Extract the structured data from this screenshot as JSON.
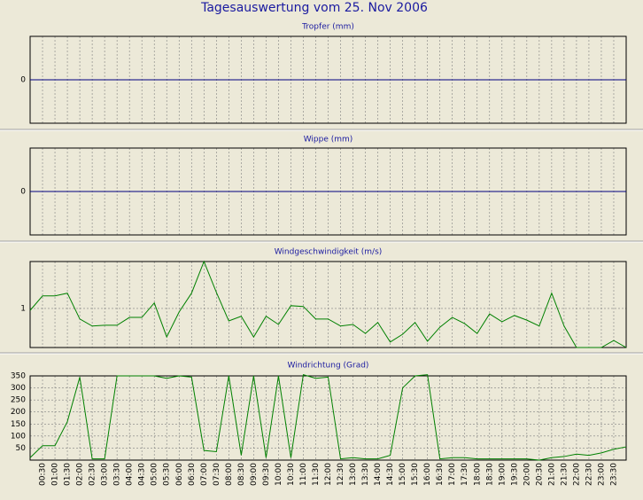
{
  "title": "Tagesauswertung vom 25. Nov 2006",
  "chart_data": [
    {
      "type": "line",
      "title": "Tropfer (mm)",
      "color": "#000080",
      "ylim": [
        -1,
        1
      ],
      "yticks": [
        0
      ],
      "grid": true,
      "values": [
        0,
        0,
        0,
        0,
        0,
        0,
        0,
        0,
        0,
        0,
        0,
        0,
        0,
        0,
        0,
        0,
        0,
        0,
        0,
        0,
        0,
        0,
        0,
        0,
        0,
        0,
        0,
        0,
        0,
        0,
        0,
        0,
        0,
        0,
        0,
        0,
        0,
        0,
        0,
        0,
        0,
        0,
        0,
        0,
        0,
        0,
        0,
        0,
        0
      ]
    },
    {
      "type": "line",
      "title": "Wippe (mm)",
      "color": "#000080",
      "ylim": [
        -1,
        1
      ],
      "yticks": [
        0
      ],
      "grid": true,
      "values": [
        0,
        0,
        0,
        0,
        0,
        0,
        0,
        0,
        0,
        0,
        0,
        0,
        0,
        0,
        0,
        0,
        0,
        0,
        0,
        0,
        0,
        0,
        0,
        0,
        0,
        0,
        0,
        0,
        0,
        0,
        0,
        0,
        0,
        0,
        0,
        0,
        0,
        0,
        0,
        0,
        0,
        0,
        0,
        0,
        0,
        0,
        0,
        0,
        0
      ]
    },
    {
      "type": "line",
      "title": "Windgeschwindigkeit (m/s)",
      "color": "#008000",
      "ylim": [
        0,
        2.2
      ],
      "yticks": [
        1
      ],
      "grid": true,
      "values": [
        0.95,
        1.32,
        1.32,
        1.39,
        0.73,
        0.55,
        0.57,
        0.57,
        0.77,
        0.77,
        1.14,
        0.27,
        0.91,
        1.39,
        2.2,
        1.41,
        0.68,
        0.8,
        0.27,
        0.8,
        0.59,
        1.07,
        1.05,
        0.73,
        0.73,
        0.55,
        0.59,
        0.36,
        0.64,
        0.14,
        0.34,
        0.64,
        0.16,
        0.52,
        0.77,
        0.61,
        0.36,
        0.86,
        0.66,
        0.82,
        0.7,
        0.55,
        1.39,
        0.55,
        0,
        0,
        0,
        0.18,
        0
      ]
    },
    {
      "type": "line",
      "title": "Windrichtung (Grad)",
      "color": "#008000",
      "ylim": [
        0,
        350
      ],
      "yticks": [
        50,
        100,
        150,
        200,
        250,
        300,
        350
      ],
      "grid": true,
      "categories": [
        null,
        "00:30",
        "01:00",
        "01:30",
        "02:00",
        "02:30",
        "03:00",
        "03:30",
        "04:00",
        "04:30",
        "05:00",
        "05:30",
        "06:00",
        "06:30",
        "07:00",
        "07:30",
        "08:00",
        "08:30",
        "09:00",
        "09:30",
        "10:00",
        "10:30",
        "11:00",
        "11:30",
        "12:00",
        "12:30",
        "13:00",
        "13:30",
        "14:00",
        "14:30",
        "15:00",
        "15:30",
        "16:00",
        "16:30",
        "17:00",
        "17:30",
        "18:00",
        "18:30",
        "19:00",
        "19:30",
        "20:00",
        "20:30",
        "21:00",
        "21:30",
        "22:00",
        "22:30",
        "23:00",
        "23:30",
        null
      ],
      "values": [
        10,
        60,
        60,
        160,
        345,
        5,
        5,
        350,
        350,
        350,
        350,
        340,
        350,
        345,
        40,
        35,
        350,
        20,
        350,
        10,
        350,
        10,
        355,
        340,
        345,
        5,
        10,
        5,
        5,
        20,
        300,
        350,
        355,
        5,
        10,
        10,
        5,
        5,
        5,
        5,
        5,
        0,
        10,
        15,
        25,
        20,
        30,
        45,
        55
      ]
    }
  ]
}
